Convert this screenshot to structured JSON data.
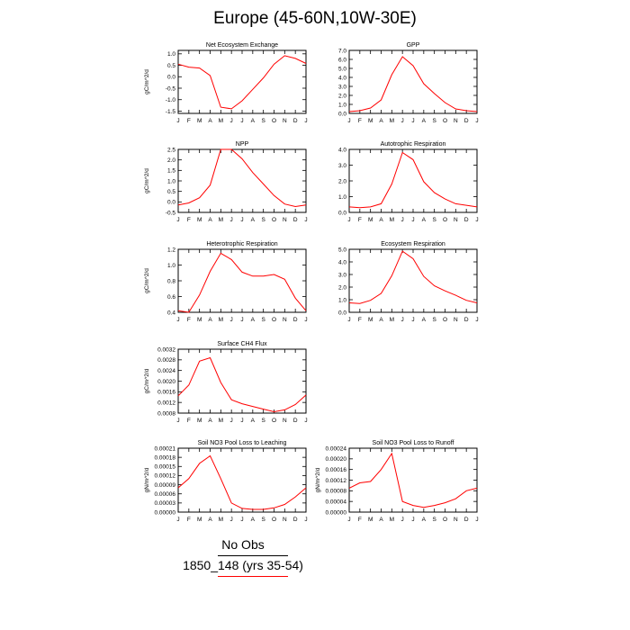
{
  "figure_title": "Europe (45-60N,10W-30E)",
  "colors": {
    "line": "#ff0000",
    "axis": "#000000",
    "obs_line": "#000000"
  },
  "legend": {
    "entries": [
      {
        "label": "No Obs",
        "color": "#000000"
      },
      {
        "label": "1850_148 (yrs 35-54)",
        "color": "#ff0000"
      }
    ]
  },
  "chart_data": [
    {
      "type": "line",
      "title": "Net Ecosystem Exchange",
      "ylabel": "gC/m^2/d",
      "x": [
        "J",
        "F",
        "M",
        "A",
        "M",
        "J",
        "J",
        "A",
        "S",
        "O",
        "N",
        "D",
        "J"
      ],
      "ylim": [
        -1.6,
        1.15
      ],
      "yticks": [
        "1.0",
        "0.5",
        "0.0",
        "-0.5",
        "-1.0",
        "-1.5"
      ],
      "ytick_values": [
        1.0,
        0.5,
        0.0,
        -0.5,
        -1.0,
        -1.5
      ],
      "series": [
        {
          "values": [
            0.55,
            0.42,
            0.38,
            0.05,
            -1.33,
            -1.4,
            -1.05,
            -0.55,
            -0.05,
            0.55,
            0.92,
            0.8,
            0.58
          ]
        }
      ]
    },
    {
      "type": "line",
      "title": "GPP",
      "ylabel": "",
      "x": [
        "J",
        "F",
        "M",
        "A",
        "M",
        "J",
        "J",
        "A",
        "S",
        "O",
        "N",
        "D",
        "J"
      ],
      "ylim": [
        0,
        7.0
      ],
      "yticks": [
        "7.0",
        "6.0",
        "5.0",
        "4.0",
        "3.0",
        "2.0",
        "1.0",
        "0.0"
      ],
      "ytick_values": [
        7,
        6,
        5,
        4,
        3,
        2,
        1,
        0
      ],
      "series": [
        {
          "values": [
            0.2,
            0.3,
            0.6,
            1.5,
            4.3,
            6.3,
            5.3,
            3.3,
            2.2,
            1.2,
            0.5,
            0.3,
            0.2
          ]
        }
      ]
    },
    {
      "type": "line",
      "title": "NPP",
      "ylabel": "gC/m^2/d",
      "x": [
        "J",
        "F",
        "M",
        "A",
        "M",
        "J",
        "J",
        "A",
        "S",
        "O",
        "N",
        "D",
        "J"
      ],
      "ylim": [
        -0.5,
        2.5
      ],
      "yticks": [
        "2.5",
        "2.0",
        "1.5",
        "1.0",
        "0.5",
        "0.0",
        "-0.5"
      ],
      "ytick_values": [
        2.5,
        2.0,
        1.5,
        1.0,
        0.5,
        0.0,
        -0.5
      ],
      "series": [
        {
          "values": [
            -0.15,
            -0.05,
            0.2,
            0.8,
            2.5,
            2.5,
            2.05,
            1.4,
            0.85,
            0.3,
            -0.1,
            -0.22,
            -0.15
          ]
        }
      ]
    },
    {
      "type": "line",
      "title": "Autotrophic Respiration",
      "ylabel": "",
      "x": [
        "J",
        "F",
        "M",
        "A",
        "M",
        "J",
        "J",
        "A",
        "S",
        "O",
        "N",
        "D",
        "J"
      ],
      "ylim": [
        0,
        4.0
      ],
      "yticks": [
        "4.0",
        "3.0",
        "2.0",
        "1.0",
        "0.0"
      ],
      "ytick_values": [
        4,
        3,
        2,
        1,
        0
      ],
      "series": [
        {
          "values": [
            0.35,
            0.3,
            0.35,
            0.55,
            1.8,
            3.8,
            3.35,
            1.95,
            1.25,
            0.85,
            0.55,
            0.45,
            0.35
          ]
        }
      ]
    },
    {
      "type": "line",
      "title": "Heterotrophic Respiration",
      "ylabel": "gC/m^2/d",
      "x": [
        "J",
        "F",
        "M",
        "A",
        "M",
        "J",
        "J",
        "A",
        "S",
        "O",
        "N",
        "D",
        "J"
      ],
      "ylim": [
        0.4,
        1.2
      ],
      "yticks": [
        "1.2",
        "1.0",
        "0.8",
        "0.6",
        "0.4"
      ],
      "ytick_values": [
        1.2,
        1.0,
        0.8,
        0.6,
        0.4
      ],
      "series": [
        {
          "values": [
            0.42,
            0.4,
            0.62,
            0.92,
            1.15,
            1.07,
            0.91,
            0.86,
            0.86,
            0.88,
            0.82,
            0.58,
            0.42
          ]
        }
      ]
    },
    {
      "type": "line",
      "title": "Ecosystem Respiration",
      "ylabel": "",
      "x": [
        "J",
        "F",
        "M",
        "A",
        "M",
        "J",
        "J",
        "A",
        "S",
        "O",
        "N",
        "D",
        "J"
      ],
      "ylim": [
        0,
        5.0
      ],
      "yticks": [
        "5.0",
        "4.0",
        "3.0",
        "2.0",
        "1.0",
        "0.0"
      ],
      "ytick_values": [
        5,
        4,
        3,
        2,
        1,
        0
      ],
      "series": [
        {
          "values": [
            0.75,
            0.7,
            0.95,
            1.5,
            2.9,
            4.85,
            4.25,
            2.85,
            2.1,
            1.7,
            1.35,
            0.95,
            0.75
          ]
        }
      ]
    },
    {
      "type": "line",
      "title": "Surface CH4 Flux",
      "ylabel": "gC/m^2/d",
      "x": [
        "J",
        "F",
        "M",
        "A",
        "M",
        "J",
        "J",
        "A",
        "S",
        "O",
        "N",
        "D",
        "J"
      ],
      "ylim": [
        0.0008,
        0.0032
      ],
      "yticks": [
        "0.0032",
        "0.0028",
        "0.0024",
        "0.0020",
        "0.0016",
        "0.0012",
        "0.0008"
      ],
      "ytick_values": [
        0.0032,
        0.0028,
        0.0024,
        0.002,
        0.0016,
        0.0012,
        0.0008
      ],
      "series": [
        {
          "values": [
            0.00145,
            0.00185,
            0.00275,
            0.00288,
            0.00195,
            0.0013,
            0.00115,
            0.00105,
            0.00095,
            0.00085,
            0.00092,
            0.00112,
            0.00148
          ]
        }
      ]
    },
    {
      "type": "line",
      "title": "Soil NO3 Pool Loss to Leaching",
      "ylabel": "gN/m^2/d",
      "x": [
        "J",
        "F",
        "M",
        "A",
        "M",
        "J",
        "J",
        "A",
        "S",
        "O",
        "N",
        "D",
        "J"
      ],
      "ylim": [
        0,
        0.00021
      ],
      "yticks": [
        "0.00021",
        "0.00018",
        "0.00015",
        "0.00012",
        "0.00009",
        "0.00006",
        "0.00003",
        "0.00000"
      ],
      "ytick_values": [
        0.00021,
        0.00018,
        0.00015,
        0.00012,
        9e-05,
        6e-05,
        3e-05,
        0.0
      ],
      "series": [
        {
          "values": [
            8e-05,
            0.00011,
            0.00016,
            0.000185,
            0.00011,
            3e-05,
            1.2e-05,
            9e-06,
            9e-06,
            1.4e-05,
            2.5e-05,
            5e-05,
            8e-05
          ]
        }
      ]
    },
    {
      "type": "line",
      "title": "Soil NO3 Pool Loss to Runoff",
      "ylabel": "gN/m^2/d",
      "x": [
        "J",
        "F",
        "M",
        "A",
        "M",
        "J",
        "J",
        "A",
        "S",
        "O",
        "N",
        "D",
        "J"
      ],
      "ylim": [
        0,
        0.00024
      ],
      "yticks": [
        "0.00024",
        "0.00020",
        "0.00016",
        "0.00012",
        "0.00008",
        "0.00004",
        "0.00000"
      ],
      "ytick_values": [
        0.00024,
        0.0002,
        0.00016,
        0.00012,
        8e-05,
        4e-05,
        0.0
      ],
      "series": [
        {
          "values": [
            9e-05,
            0.00011,
            0.000115,
            0.00016,
            0.00022,
            4e-05,
            2.5e-05,
            1.8e-05,
            2.5e-05,
            3.5e-05,
            5e-05,
            8e-05,
            9e-05
          ]
        }
      ]
    }
  ]
}
